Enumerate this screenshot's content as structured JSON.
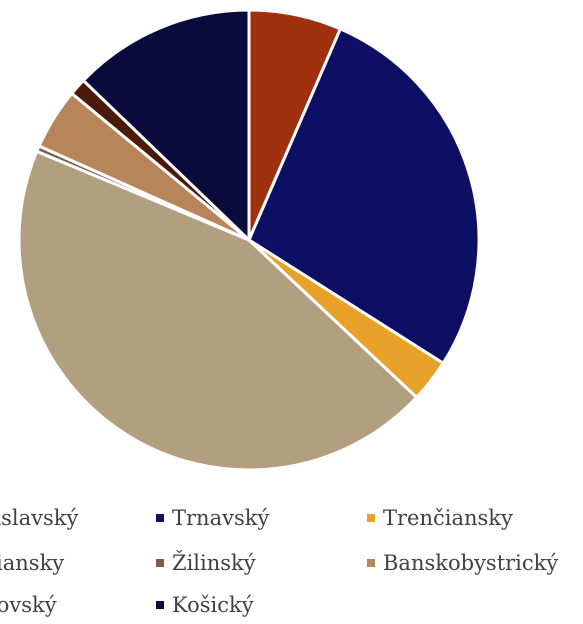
{
  "chart_data": {
    "type": "pie",
    "title": "",
    "categories": [
      "Bratislavský",
      "Trnavský",
      "Trenčiansky",
      "Nitriansky",
      "Žilinský",
      "Banskobystrický",
      "Prešovský",
      "Košický"
    ],
    "series": [
      {
        "values": [
          6.5,
          27.5,
          3.0,
          44.3,
          0.4,
          4.3,
          1.2,
          12.8
        ],
        "colors": [
          "#a0300e",
          "#0c0f63",
          "#e8a22a",
          "#b29f80",
          "#7d5c49",
          "#b8855a",
          "#4a1a0d",
          "#0a0a3c"
        ]
      }
    ],
    "legend": {
      "position": "bottom",
      "entries": [
        {
          "label": "Bratislavský",
          "display_label": "tislavský",
          "color": "#a0300e"
        },
        {
          "label": "Trnavský",
          "display_label": "Trnavský",
          "color": "#0c0f63"
        },
        {
          "label": "Trenčiansky",
          "display_label": "Trenčiansky",
          "color": "#e8a22a"
        },
        {
          "label": "Nitriansky",
          "display_label": "riansky",
          "color": "#b29f80"
        },
        {
          "label": "Žilinský",
          "display_label": "Žilinský",
          "color": "#7d5c49"
        },
        {
          "label": "Banskobystrický",
          "display_label": "Banskobystrický",
          "color": "#b8855a"
        },
        {
          "label": "Prešovský",
          "display_label": "šovský",
          "color": "#4a1a0d"
        },
        {
          "label": "Košický",
          "display_label": "Košický",
          "color": "#0a0a3c"
        }
      ]
    }
  }
}
